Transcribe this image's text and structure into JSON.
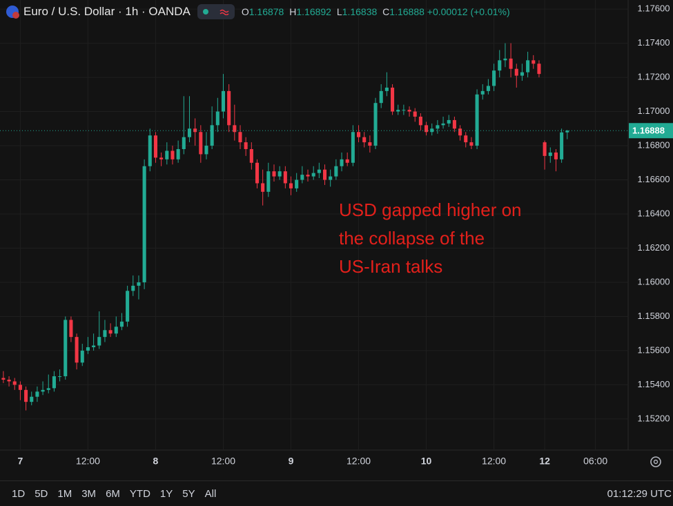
{
  "header": {
    "symbol": "Euro / U.S. Dollar · 1h · OANDA",
    "open_label": "O",
    "high_label": "H",
    "low_label": "L",
    "close_label": "C",
    "change": "+0.00012 (+0.01%)"
  },
  "chart_data": {
    "type": "candlestick",
    "up_color": "#22ab94",
    "down_color": "#f23645",
    "grid": true,
    "annotation": [
      "USD gapped higher on",
      "the collapse of the",
      "US-Iran talks"
    ],
    "xlim": [
      -0.6,
      110.8
    ],
    "xticks": [
      {
        "value": 3,
        "label": "7"
      },
      {
        "value": 15,
        "label": "12:00"
      },
      {
        "value": 27,
        "label": "8"
      },
      {
        "value": 39,
        "label": "12:00"
      },
      {
        "value": 51,
        "label": "9"
      },
      {
        "value": 63,
        "label": "12:00"
      },
      {
        "value": 75,
        "label": "10"
      },
      {
        "value": 87,
        "label": "12:00"
      },
      {
        "value": 96,
        "label": "12"
      },
      {
        "value": 105,
        "label": "06:00"
      }
    ],
    "ylim": [
      1.15046,
      1.17653
    ],
    "yticks": [
      {
        "value": 1.152,
        "label": "1.15200"
      },
      {
        "value": 1.154,
        "label": "1.15400"
      },
      {
        "value": 1.156,
        "label": "1.15600"
      },
      {
        "value": 1.158,
        "label": "1.15800"
      },
      {
        "value": 1.16,
        "label": "1.16000"
      },
      {
        "value": 1.162,
        "label": "1.16200"
      },
      {
        "value": 1.164,
        "label": "1.16400"
      },
      {
        "value": 1.166,
        "label": "1.16600"
      },
      {
        "value": 1.168,
        "label": "1.16800"
      },
      {
        "value": 1.17,
        "label": "1.17000"
      },
      {
        "value": 1.172,
        "label": "1.17200"
      },
      {
        "value": 1.174,
        "label": "1.17400"
      },
      {
        "value": 1.176,
        "label": "1.17600"
      }
    ],
    "open": [
      1.1544,
      1.1543,
      1.1542,
      1.154,
      1.1537,
      1.153,
      1.1533,
      1.1536,
      1.1537,
      1.1538,
      1.1545,
      1.1545,
      1.1578,
      1.1568,
      1.1553,
      1.156,
      1.1562,
      1.1563,
      1.1568,
      1.1572,
      1.157,
      1.1574,
      1.1577,
      1.1595,
      1.1598,
      1.16,
      1.1668,
      1.1686,
      1.1673,
      1.1672,
      1.1677,
      1.1672,
      1.1678,
      1.1685,
      1.169,
      1.1688,
      1.1675,
      1.168,
      1.1692,
      1.17,
      1.1712,
      1.1692,
      1.1688,
      1.1682,
      1.1678,
      1.167,
      1.1658,
      1.1653,
      1.1665,
      1.1662,
      1.1665,
      1.1658,
      1.1655,
      1.166,
      1.1663,
      1.1662,
      1.1664,
      1.1666,
      1.166,
      1.1662,
      1.1668,
      1.1672,
      1.167,
      1.1688,
      1.1685,
      1.1682,
      1.168,
      1.1705,
      1.1712,
      1.1714,
      1.17,
      1.1701,
      1.1701,
      1.17,
      1.1697,
      1.1692,
      1.1688,
      1.169,
      1.1692,
      1.1693,
      1.1695,
      1.169,
      1.1686,
      1.1682,
      1.168,
      1.171,
      1.1712,
      1.1715,
      1.1724,
      1.173,
      1.1731,
      1.1725,
      1.1721,
      1.1723,
      1.173,
      1.1728,
      1.1682,
      1.1674,
      1.1676,
      1.1672,
      1.16878
    ],
    "high": [
      1.1548,
      1.1545,
      1.1544,
      1.1542,
      1.1539,
      1.1536,
      1.1539,
      1.1542,
      1.1546,
      1.1548,
      1.1549,
      1.158,
      1.158,
      1.157,
      1.1564,
      1.1568,
      1.157,
      1.1583,
      1.1578,
      1.1576,
      1.158,
      1.1582,
      1.1598,
      1.1604,
      1.1604,
      1.1672,
      1.169,
      1.1688,
      1.1676,
      1.1682,
      1.168,
      1.1683,
      1.1709,
      1.1709,
      1.1696,
      1.1692,
      1.1688,
      1.1703,
      1.1708,
      1.1722,
      1.1716,
      1.1704,
      1.1692,
      1.1685,
      1.1682,
      1.1672,
      1.1666,
      1.167,
      1.1669,
      1.1668,
      1.1668,
      1.1662,
      1.1664,
      1.1668,
      1.1666,
      1.1668,
      1.167,
      1.1669,
      1.1666,
      1.1672,
      1.1676,
      1.1676,
      1.1692,
      1.1692,
      1.1688,
      1.1686,
      1.1708,
      1.1716,
      1.1723,
      1.1716,
      1.1704,
      1.1704,
      1.1703,
      1.1702,
      1.1699,
      1.1694,
      1.1693,
      1.1695,
      1.1697,
      1.1698,
      1.1697,
      1.1692,
      1.1688,
      1.1685,
      1.1713,
      1.1716,
      1.1719,
      1.1728,
      1.1736,
      1.174,
      1.174,
      1.1728,
      1.1728,
      1.1735,
      1.1733,
      1.173,
      1.1683,
      1.1679,
      1.1678,
      1.169,
      1.16892
    ],
    "low": [
      1.1541,
      1.1539,
      1.1537,
      1.1531,
      1.1525,
      1.1528,
      1.153,
      1.1534,
      1.1535,
      1.1536,
      1.1542,
      1.1543,
      1.1565,
      1.1549,
      1.1551,
      1.1558,
      1.156,
      1.1561,
      1.1565,
      1.1568,
      1.1568,
      1.1572,
      1.1574,
      1.1592,
      1.159,
      1.1596,
      1.1665,
      1.167,
      1.1668,
      1.1669,
      1.1669,
      1.167,
      1.1675,
      1.1682,
      1.168,
      1.167,
      1.1672,
      1.1678,
      1.1688,
      1.1696,
      1.1688,
      1.1683,
      1.1678,
      1.1674,
      1.1666,
      1.1655,
      1.1645,
      1.165,
      1.1659,
      1.166,
      1.1655,
      1.1651,
      1.1653,
      1.1658,
      1.1659,
      1.166,
      1.1661,
      1.1657,
      1.1656,
      1.166,
      1.1665,
      1.1668,
      1.1668,
      1.1682,
      1.1679,
      1.1676,
      1.1678,
      1.1702,
      1.1709,
      1.1698,
      1.1698,
      1.1698,
      1.1697,
      1.1694,
      1.1689,
      1.1686,
      1.1686,
      1.1687,
      1.169,
      1.1691,
      1.1688,
      1.1683,
      1.1679,
      1.1678,
      1.1678,
      1.1707,
      1.171,
      1.1712,
      1.172,
      1.1726,
      1.172,
      1.1714,
      1.1718,
      1.172,
      1.1725,
      1.172,
      1.1666,
      1.167,
      1.1665,
      1.167,
      1.16838
    ],
    "close": [
      1.1543,
      1.1542,
      1.154,
      1.1537,
      1.153,
      1.1533,
      1.1536,
      1.1537,
      1.1538,
      1.1545,
      1.1545,
      1.1578,
      1.1568,
      1.1553,
      1.156,
      1.1562,
      1.1563,
      1.1568,
      1.1572,
      1.157,
      1.1574,
      1.1577,
      1.1595,
      1.1598,
      1.16,
      1.1668,
      1.1686,
      1.1673,
      1.1672,
      1.1677,
      1.1672,
      1.1678,
      1.1685,
      1.169,
      1.1688,
      1.1675,
      1.168,
      1.1692,
      1.17,
      1.1712,
      1.1692,
      1.1688,
      1.1682,
      1.1678,
      1.167,
      1.1658,
      1.1653,
      1.1665,
      1.1662,
      1.1665,
      1.1658,
      1.1655,
      1.166,
      1.1663,
      1.1662,
      1.1664,
      1.1666,
      1.166,
      1.1662,
      1.1668,
      1.1672,
      1.167,
      1.1688,
      1.1685,
      1.1682,
      1.168,
      1.1705,
      1.1712,
      1.1714,
      1.17,
      1.1701,
      1.1701,
      1.17,
      1.1697,
      1.1692,
      1.1688,
      1.169,
      1.1692,
      1.1693,
      1.1695,
      1.169,
      1.1686,
      1.1682,
      1.168,
      1.171,
      1.1712,
      1.1715,
      1.1724,
      1.173,
      1.1731,
      1.1725,
      1.1721,
      1.1723,
      1.173,
      1.1728,
      1.1722,
      1.1674,
      1.1676,
      1.1672,
      1.16878,
      1.16888
    ]
  },
  "toolbar": {
    "ranges": [
      "1D",
      "5D",
      "1M",
      "3M",
      "6M",
      "YTD",
      "1Y",
      "5Y",
      "All"
    ],
    "clock": "01:12:29 UTC"
  }
}
